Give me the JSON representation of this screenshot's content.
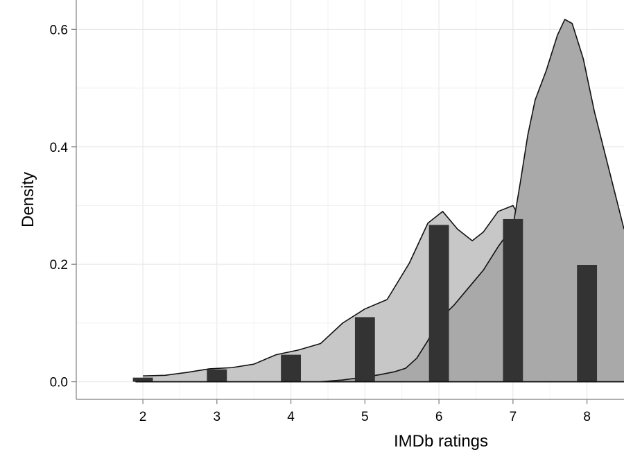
{
  "chart_data": {
    "type": "bar",
    "xlabel": "IMDb ratings",
    "ylabel": "Density",
    "xlim": [
      1.1,
      8.5
    ],
    "ylim": [
      -0.03,
      0.65
    ],
    "x_ticks": [
      2,
      3,
      4,
      5,
      6,
      7,
      8
    ],
    "y_ticks": [
      0.0,
      0.2,
      0.4,
      0.6
    ],
    "x_tick_labels": [
      "2",
      "3",
      "4",
      "5",
      "6",
      "7",
      "8"
    ],
    "y_tick_labels": [
      "0.0",
      "0.2",
      "0.4",
      "0.6"
    ],
    "grid": true,
    "histogram": {
      "x": [
        2,
        3,
        4,
        5,
        6,
        7,
        8
      ],
      "values": [
        0.007,
        0.021,
        0.046,
        0.11,
        0.267,
        0.277,
        0.199
      ],
      "color": "#333333"
    },
    "densities": [
      {
        "fill": "#c7c7c7",
        "x": [
          2.0,
          2.3,
          2.6,
          2.9,
          3.2,
          3.5,
          3.8,
          4.1,
          4.4,
          4.7,
          5.0,
          5.3,
          5.6,
          5.85,
          6.05,
          6.25,
          6.45,
          6.6,
          6.8,
          7.0,
          7.2,
          7.4,
          7.6,
          7.85,
          8.0,
          8.2,
          8.5
        ],
        "y": [
          0.01,
          0.011,
          0.016,
          0.022,
          0.024,
          0.03,
          0.046,
          0.054,
          0.065,
          0.1,
          0.124,
          0.14,
          0.202,
          0.27,
          0.29,
          0.26,
          0.24,
          0.255,
          0.29,
          0.3,
          0.255,
          0.21,
          0.206,
          0.218,
          0.215,
          0.19,
          0.138
        ]
      },
      {
        "fill": "#a9a9a9",
        "x": [
          4.4,
          4.7,
          5.0,
          5.2,
          5.4,
          5.55,
          5.7,
          5.85,
          6.0,
          6.2,
          6.4,
          6.6,
          6.8,
          7.0,
          7.1,
          7.2,
          7.3,
          7.45,
          7.6,
          7.7,
          7.8,
          7.95,
          8.1,
          8.3,
          8.5
        ],
        "y": [
          0.0,
          0.003,
          0.008,
          0.012,
          0.017,
          0.023,
          0.04,
          0.07,
          0.105,
          0.13,
          0.16,
          0.19,
          0.23,
          0.265,
          0.34,
          0.42,
          0.48,
          0.53,
          0.59,
          0.617,
          0.61,
          0.55,
          0.46,
          0.36,
          0.26
        ]
      }
    ]
  }
}
